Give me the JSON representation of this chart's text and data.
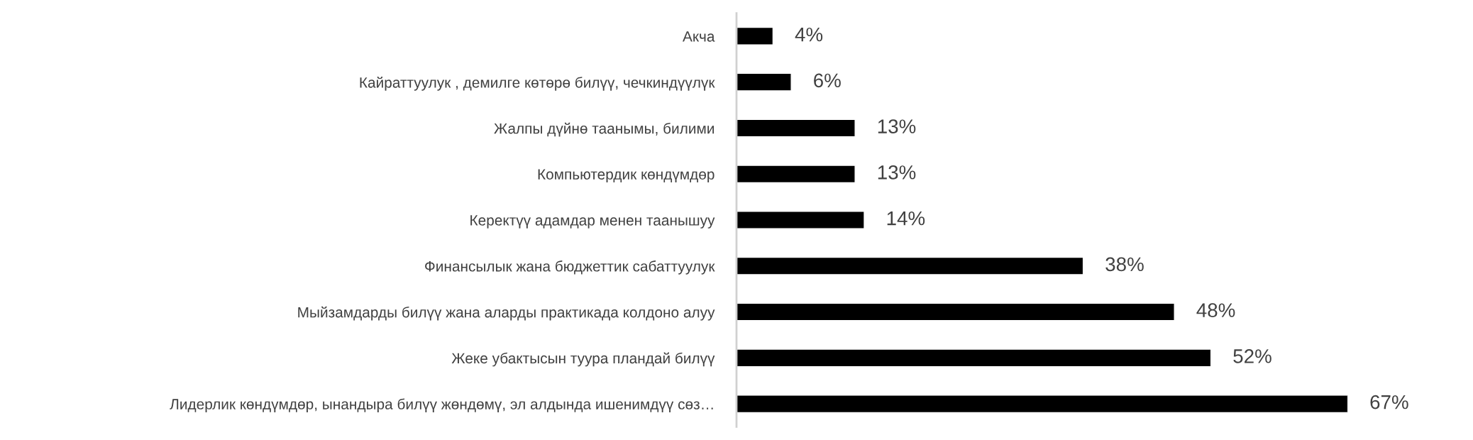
{
  "chart_data": {
    "type": "bar",
    "orientation": "horizontal",
    "categories": [
      "Акча",
      "Кайраттуулук , демилге көтөрө билүү, чечкиндүүлүк",
      "Жалпы дүйнө таанымы, билими",
      "Компьютердик көндүмдөр",
      "Керектүү адамдар менен таанышуу",
      "Финансылык жана бюджеттик сабаттуулук",
      "Мыйзамдарды билүү жана аларды практикада колдоно алуу",
      "Жеке убактысын туура пландай билүү",
      "Лидерлик көндүмдөр, ынандыра билүү жөндөмү, эл алдында ишенимдүү сөз…"
    ],
    "values": [
      4,
      6,
      13,
      13,
      14,
      38,
      48,
      52,
      67
    ],
    "value_labels": [
      "4%",
      "6%",
      "13%",
      "13%",
      "14%",
      "38%",
      "48%",
      "52%",
      "67%"
    ],
    "color": "#000000",
    "grid": false,
    "legend": false
  }
}
